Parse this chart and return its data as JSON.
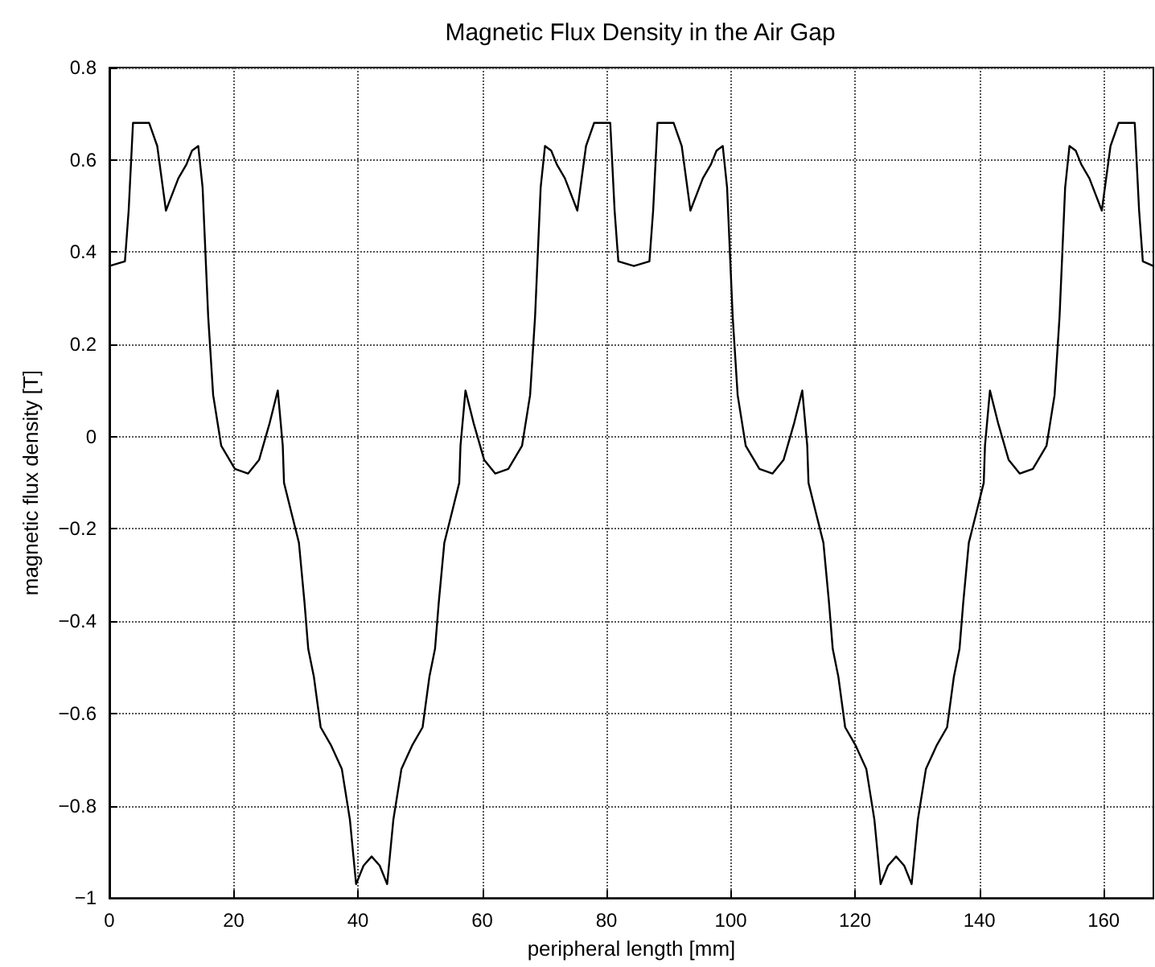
{
  "chart_data": {
    "type": "line",
    "title": "Magnetic Flux Density in the Air Gap",
    "xlabel": "peripheral length [mm]",
    "ylabel": "magnetic flux density [T]",
    "color": "#000000",
    "grid": true,
    "line_style": "solid",
    "xlim": [
      0,
      168
    ],
    "xticks": [
      0,
      20,
      40,
      60,
      80,
      100,
      120,
      140,
      160
    ],
    "ylim": [
      -1,
      0.8
    ],
    "yticks": [
      -1,
      -0.8,
      -0.6,
      -0.4,
      -0.2,
      0,
      0.2,
      0.4,
      0.6,
      0.8
    ],
    "x": [
      0,
      2.5,
      3.1,
      3.8,
      6.4,
      7.7,
      9.1,
      11.1,
      12.4,
      13.3,
      14.3,
      15.0,
      15.9,
      16.7,
      18.0,
      20.2,
      22.3,
      24.1,
      25.8,
      27.1,
      27.9,
      28.1,
      29.2,
      30.5,
      31.4,
      32.0,
      32.9,
      34.0,
      35.7,
      37.4,
      38.7,
      39.7,
      40.9,
      42.2,
      43.5,
      44.7,
      45.7,
      47.0,
      48.7,
      50.4,
      51.5,
      52.4,
      53.0,
      53.9,
      55.2,
      56.3,
      56.5,
      57.3,
      58.6,
      60.3,
      62.1,
      64.2,
      66.4,
      67.7,
      68.5,
      69.4,
      70.1,
      71.1,
      72.0,
      73.3,
      75.3,
      76.7,
      78.0,
      80.6,
      81.3,
      81.9,
      84.4,
      86.9,
      87.5,
      88.2,
      90.8,
      92.1,
      93.5,
      95.5,
      96.8,
      97.7,
      98.7,
      99.4,
      100.3,
      101.1,
      102.4,
      104.6,
      106.7,
      108.5,
      110.2,
      111.5,
      112.3,
      112.5,
      113.6,
      114.9,
      115.8,
      116.4,
      117.3,
      118.4,
      120.1,
      121.8,
      123.1,
      124.1,
      125.3,
      126.6,
      127.9,
      129.1,
      130.1,
      131.4,
      133.1,
      134.8,
      135.9,
      136.8,
      137.4,
      138.3,
      139.6,
      140.7,
      140.9,
      141.7,
      143.0,
      144.7,
      146.5,
      148.6,
      150.8,
      152.1,
      152.9,
      153.8,
      154.5,
      155.5,
      156.4,
      157.7,
      159.7,
      161.1,
      162.4,
      165.0,
      165.7,
      166.3,
      168
    ],
    "values": [
      0.37,
      0.38,
      0.49,
      0.68,
      0.68,
      0.63,
      0.49,
      0.56,
      0.59,
      0.62,
      0.63,
      0.54,
      0.26,
      0.09,
      -0.02,
      -0.07,
      -0.08,
      -0.05,
      0.03,
      0.1,
      -0.02,
      -0.1,
      -0.16,
      -0.23,
      -0.36,
      -0.46,
      -0.52,
      -0.63,
      -0.67,
      -0.72,
      -0.83,
      -0.97,
      -0.93,
      -0.91,
      -0.93,
      -0.97,
      -0.83,
      -0.72,
      -0.67,
      -0.63,
      -0.52,
      -0.46,
      -0.36,
      -0.23,
      -0.16,
      -0.1,
      -0.02,
      0.1,
      0.03,
      -0.05,
      -0.08,
      -0.07,
      -0.02,
      0.09,
      0.26,
      0.54,
      0.63,
      0.62,
      0.59,
      0.56,
      0.49,
      0.63,
      0.68,
      0.68,
      0.49,
      0.38,
      0.37,
      0.38,
      0.49,
      0.68,
      0.68,
      0.63,
      0.49,
      0.56,
      0.59,
      0.62,
      0.63,
      0.54,
      0.26,
      0.09,
      -0.02,
      -0.07,
      -0.08,
      -0.05,
      0.03,
      0.1,
      -0.02,
      -0.1,
      -0.16,
      -0.23,
      -0.36,
      -0.46,
      -0.52,
      -0.63,
      -0.67,
      -0.72,
      -0.83,
      -0.97,
      -0.93,
      -0.91,
      -0.93,
      -0.97,
      -0.83,
      -0.72,
      -0.67,
      -0.63,
      -0.52,
      -0.46,
      -0.36,
      -0.23,
      -0.16,
      -0.1,
      -0.02,
      0.1,
      0.03,
      -0.05,
      -0.08,
      -0.07,
      -0.02,
      0.09,
      0.26,
      0.54,
      0.63,
      0.62,
      0.59,
      0.56,
      0.49,
      0.63,
      0.68,
      0.68,
      0.49,
      0.38,
      0.37
    ]
  }
}
